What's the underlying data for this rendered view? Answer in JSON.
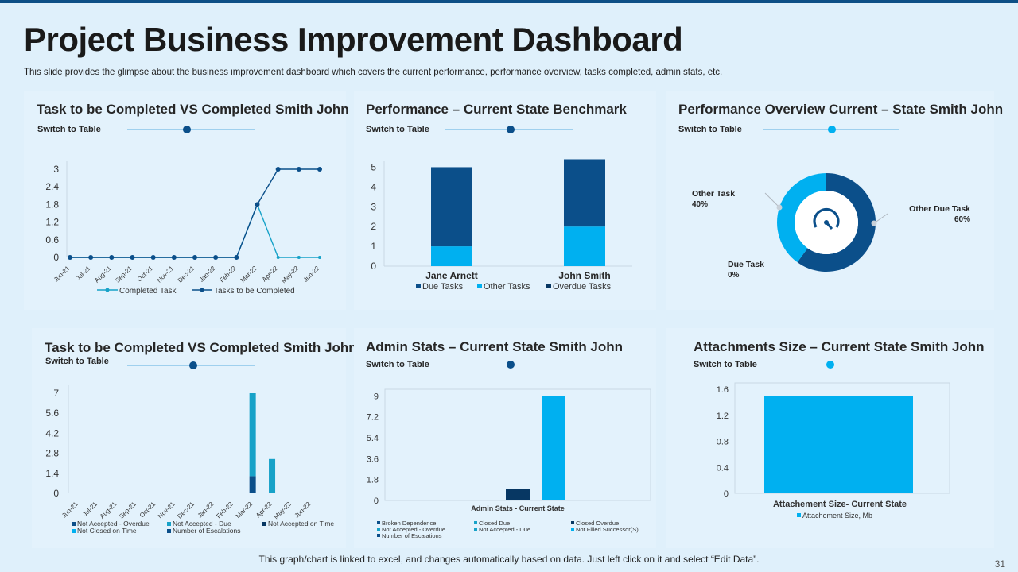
{
  "slide": {
    "title": "Project Business Improvement Dashboard",
    "subtitle": "This slide provides the glimpse about the business improvement dashboard which covers the current performance, performance overview, tasks completed, admin stats, etc.",
    "footer": "This graph/chart is linked to excel, and changes automatically based on data. Just left click on it and select “Edit Data”.",
    "page_number": "31",
    "switch_label": "Switch to Table"
  },
  "colors": {
    "navy": "#0b4f8a",
    "cyan": "#00b0f0",
    "mid": "#1f7fc4",
    "teal": "#17a2c8",
    "dark": "#073763"
  },
  "panels": {
    "p1": {
      "title": "Task to be Completed VS Completed Smith John"
    },
    "p2": {
      "title": "Performance – Current State Benchmark"
    },
    "p3": {
      "title": "Performance Overview Current – State Smith John"
    },
    "p4": {
      "title": "Task to be Completed VS Completed Smith John"
    },
    "p5": {
      "title": "Admin Stats – Current State Smith John"
    },
    "p6": {
      "title": "Attachments Size – Current State Smith John"
    }
  },
  "chart_data": [
    {
      "id": "line1",
      "type": "line",
      "title": "Task to be Completed VS Completed Smith John",
      "categories": [
        "Jun-21",
        "Jul-21",
        "Aug-21",
        "Sep-21",
        "Oct-21",
        "Nov-21",
        "Dec-21",
        "Jan-22",
        "Feb-22",
        "Mar-22",
        "Apr-22",
        "May-22",
        "Jun-22"
      ],
      "yticks": [
        "0",
        "0.6",
        "1.2",
        "1.8",
        "2.4",
        "3"
      ],
      "ylim": [
        0,
        3
      ],
      "series": [
        {
          "name": "Completed Task",
          "values": [
            0,
            0,
            0,
            0,
            0,
            0,
            0,
            0,
            0,
            1.8,
            0,
            0,
            0
          ]
        },
        {
          "name": "Tasks to be Completed",
          "values": [
            0,
            0,
            0,
            0,
            0,
            0,
            0,
            0,
            0,
            1.8,
            3,
            3,
            3
          ]
        }
      ]
    },
    {
      "id": "stack1",
      "type": "bar",
      "title": "Performance – Current State Benchmark",
      "categories": [
        "Jane Arnett",
        "John Smith"
      ],
      "yticks": [
        "0",
        "1",
        "2",
        "3",
        "4",
        "5"
      ],
      "ylim": [
        0,
        5.5
      ],
      "series": [
        {
          "name": "Due Tasks",
          "values": [
            4,
            3.4
          ]
        },
        {
          "name": "Other Tasks",
          "values": [
            1,
            2
          ]
        },
        {
          "name": "Overdue Tasks",
          "values": [
            0,
            0
          ]
        }
      ]
    },
    {
      "id": "donut1",
      "type": "pie",
      "title": "Performance Overview Current – State Smith John",
      "slices": [
        {
          "name": "Other Due Task",
          "value": 60,
          "label": "Other Due Task",
          "pct": "60%"
        },
        {
          "name": "Other Task",
          "value": 40,
          "label": "Other Task",
          "pct": "40%"
        },
        {
          "name": "Due Task",
          "value": 0,
          "label": "Due Task",
          "pct": "0%"
        }
      ]
    },
    {
      "id": "bar4",
      "type": "bar",
      "title": "Task to be Completed VS Completed Smith John",
      "categories": [
        "Jun-21",
        "Jul-21",
        "Aug-21",
        "Sep-21",
        "Oct-21",
        "Nov-21",
        "Dec-21",
        "Jan-22",
        "Feb-22",
        "Mar-22",
        "Apr-22",
        "May-22",
        "Jun-22"
      ],
      "yticks": [
        "0",
        "1.4",
        "2.8",
        "4.2",
        "5.6",
        "7"
      ],
      "ylim": [
        0,
        7
      ],
      "series": [
        {
          "name": "Not Accepted - Overdue",
          "values": [
            0,
            0,
            0,
            0,
            0,
            0,
            0,
            0,
            0,
            1.2,
            0,
            0,
            0
          ]
        },
        {
          "name": "Not Accepted - Due",
          "values": [
            0,
            0,
            0,
            0,
            0,
            0,
            0,
            0,
            0,
            5.8,
            2.4,
            0,
            0
          ]
        },
        {
          "name": "Not Accepted on Time",
          "values": [
            0,
            0,
            0,
            0,
            0,
            0,
            0,
            0,
            0,
            0,
            0,
            0,
            0
          ]
        },
        {
          "name": "Not Closed on Time",
          "values": [
            0,
            0,
            0,
            0,
            0,
            0,
            0,
            0,
            0,
            0,
            0,
            0,
            0
          ]
        },
        {
          "name": "Number of Escalations",
          "values": [
            0,
            0,
            0,
            0,
            0,
            0,
            0,
            0,
            0,
            0,
            0,
            0,
            0
          ]
        }
      ]
    },
    {
      "id": "admin",
      "type": "bar",
      "title": "Admin Stats – Current State Smith John",
      "xlabel": "Admin Stats - Current State",
      "yticks": [
        "0",
        "1.8",
        "3.6",
        "5.4",
        "7.2",
        "9"
      ],
      "ylim": [
        0,
        9.5
      ],
      "series": [
        {
          "name": "Broken Dependence",
          "value": 0
        },
        {
          "name": "Not Accepted - Overdue",
          "value": 0
        },
        {
          "name": "Number of Escalations",
          "value": 0
        },
        {
          "name": "Closed Due",
          "value": 0
        },
        {
          "name": "Not Accepted - Due",
          "value": 0
        },
        {
          "name": "Closed Overdue",
          "value": 1
        },
        {
          "name": "Not Filled Successor(S)",
          "value": 9
        }
      ]
    },
    {
      "id": "attach",
      "type": "bar",
      "title": "Attachments Size – Current State Smith John",
      "categories": [
        "Attachement Size- Current State"
      ],
      "yticks": [
        "0",
        "0.4",
        "0.8",
        "1.2",
        "1.6"
      ],
      "ylim": [
        0,
        1.6
      ],
      "series": [
        {
          "name": "Attachement Size, Mb",
          "values": [
            1.5
          ]
        }
      ]
    }
  ]
}
